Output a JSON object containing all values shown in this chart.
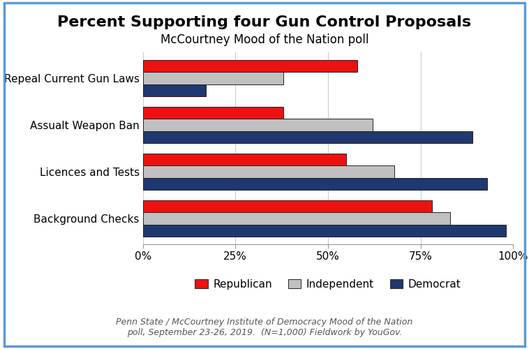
{
  "title": "Percent Supporting four Gun Control Proposals",
  "subtitle": "McCourtney Mood of the Nation poll",
  "footnote": "Penn State / McCourtney Institute of Democracy Mood of the Nation\npoll, September 23-26, 2019.  (N=1,000) Fieldwork by YouGov.",
  "categories": [
    "Repeal Current Gun Laws",
    "Assualt Weapon Ban",
    "Licences and Tests",
    "Background Checks"
  ],
  "series": {
    "Republican": [
      58,
      38,
      55,
      78
    ],
    "Independent": [
      38,
      62,
      68,
      83
    ],
    "Democrat": [
      17,
      89,
      93,
      98
    ]
  },
  "colors": {
    "Republican": "#ee1111",
    "Independent": "#c0c0c0",
    "Democrat": "#1f3870"
  },
  "xlim": [
    0,
    100
  ],
  "xtick_labels": [
    "0%",
    "25%",
    "50%",
    "75%",
    "100%"
  ],
  "xtick_values": [
    0,
    25,
    50,
    75,
    100
  ],
  "bar_height": 0.26,
  "background_color": "#ffffff",
  "border_color": "#5b9bd5",
  "title_fontsize": 16,
  "subtitle_fontsize": 12,
  "footnote_fontsize": 9,
  "tick_fontsize": 11,
  "legend_fontsize": 11
}
